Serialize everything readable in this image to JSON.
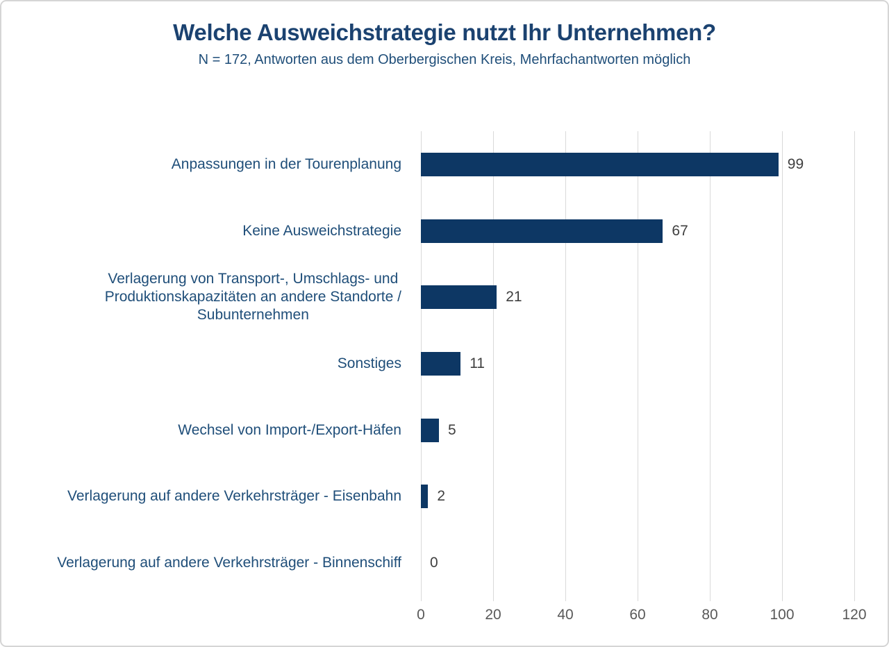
{
  "frame": {
    "background": "#ffffff",
    "border_color": "#d5d5d5"
  },
  "chart_data": {
    "type": "bar",
    "orientation": "horizontal",
    "title": "Welche Ausweichstrategie nutzt Ihr Unternehmen?",
    "subtitle": "N = 172, Antworten aus dem Oberbergischen Kreis, Mehrfachantworten möglich",
    "categories": [
      "Anpassungen in der Tourenplanung",
      "Keine Ausweichstrategie",
      "Verlagerung von Transport-, Umschlags- und\nProduktionskapazitäten an andere Standorte /\nSubunternehmen",
      "Sonstiges",
      "Wechsel von Import-/Export-Häfen",
      "Verlagerung auf andere Verkehrsträger - Eisenbahn",
      "Verlagerung auf andere Verkehrsträger - Binnenschiff"
    ],
    "values": [
      99,
      67,
      21,
      11,
      5,
      2,
      0
    ],
    "xlim": [
      0,
      120
    ],
    "xticks": [
      0,
      20,
      40,
      60,
      80,
      100,
      120
    ],
    "grid": "vertical",
    "legend": "none",
    "data_labels": "outside-end",
    "colors": {
      "bar": "#0d3764",
      "title": "#1b4270",
      "category_label": "#1f4e79",
      "value_label": "#3f3f3f",
      "tick_label": "#595959",
      "gridline": "#d9d9d9"
    }
  }
}
